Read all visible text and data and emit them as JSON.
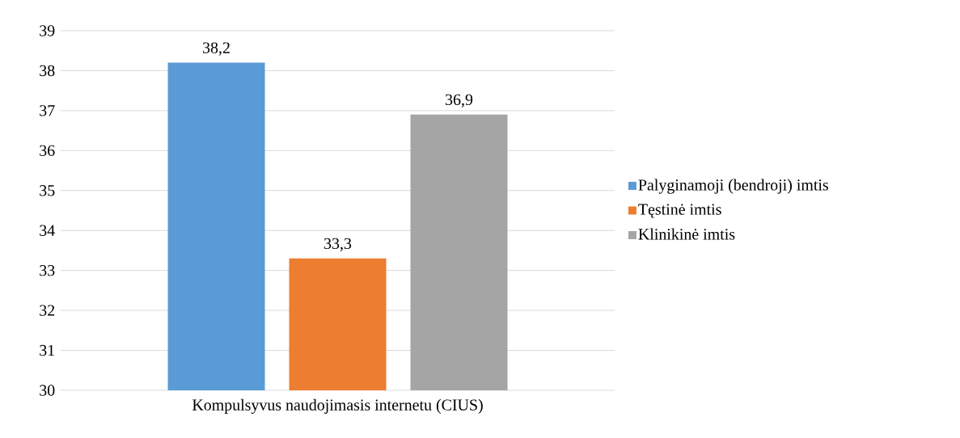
{
  "chart_data": {
    "type": "bar",
    "categories": [
      "Kompulsyvus naudojimasis internetu (CIUS)"
    ],
    "series": [
      {
        "name": "Palyginamoji (bendroji) imtis",
        "color": "#5b9bd5",
        "values": [
          38.2
        ],
        "value_labels": [
          "38,2"
        ]
      },
      {
        "name": "Tęstinė imtis",
        "color": "#ed7d31",
        "values": [
          33.3
        ],
        "value_labels": [
          "33,3"
        ]
      },
      {
        "name": "Klinikinė imtis",
        "color": "#a5a5a5",
        "values": [
          36.9
        ],
        "value_labels": [
          "36,9"
        ]
      }
    ],
    "ylim": [
      30,
      39
    ],
    "yticks": [
      30,
      31,
      32,
      33,
      34,
      35,
      36,
      37,
      38,
      39
    ],
    "grid": "y",
    "legend": "right"
  }
}
